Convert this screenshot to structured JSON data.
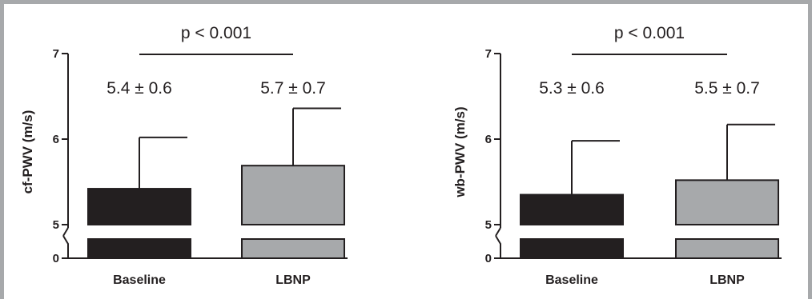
{
  "chart_data": [
    {
      "type": "bar",
      "ylabel": "cf-PWV (m/s)",
      "categories": [
        "Baseline",
        "LBNP"
      ],
      "values": [
        5.42,
        5.69
      ],
      "errors": [
        0.6,
        0.67
      ],
      "colors": [
        "#231f20",
        "#a7a9ab"
      ],
      "data_labels": [
        "5.4 ± 0.6",
        "5.7 ± 0.7"
      ],
      "significance": "p < 0.001",
      "y_ticks": [
        "0",
        "5",
        "6",
        "7"
      ],
      "ylim": [
        0,
        7
      ],
      "axis_break": [
        0,
        5
      ]
    },
    {
      "type": "bar",
      "ylabel": "wb-PWV (m/s)",
      "categories": [
        "Baseline",
        "LBNP"
      ],
      "values": [
        5.35,
        5.52
      ],
      "errors": [
        0.63,
        0.65
      ],
      "colors": [
        "#231f20",
        "#a7a9ab"
      ],
      "data_labels": [
        "5.3 ± 0.6",
        "5.5 ± 0.7"
      ],
      "significance": "p < 0.001",
      "y_ticks": [
        "0",
        "5",
        "6",
        "7"
      ],
      "ylim": [
        0,
        7
      ],
      "axis_break": [
        0,
        5
      ]
    }
  ]
}
